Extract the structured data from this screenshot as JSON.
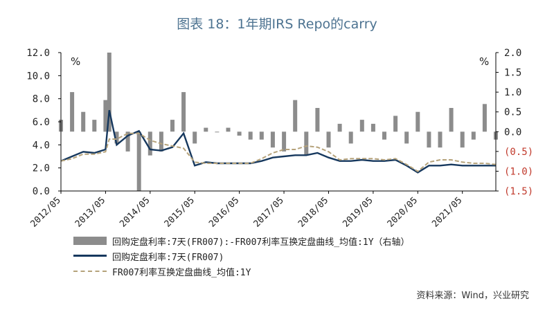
{
  "title": "图表 18：1年期IRS Repo的carry",
  "source": "资料来源：Wind，兴业研究",
  "legend": [
    {
      "label": "回购定盘利率:7天(FR007):-FR007利率互换定盘曲线_均值:1Y（右轴）",
      "style": "bar",
      "color": "#8c8c8c"
    },
    {
      "label": "回购定盘利率:7天(FR007)",
      "style": "line",
      "color": "#16385e"
    },
    {
      "label": "FR007利率互换定盘曲线_均值:1Y",
      "style": "dash",
      "color": "#b5a27a"
    }
  ],
  "chart_data": {
    "type": "line",
    "left_axis": {
      "unit": "%",
      "ylim": [
        0,
        12
      ],
      "ticks": [
        "0.0",
        "2.0",
        "4.0",
        "6.0",
        "8.0",
        "10.0",
        "12.0"
      ]
    },
    "right_axis": {
      "unit": "%",
      "ylim": [
        -1.5,
        2.0
      ],
      "ticks": [
        "(1.5)",
        "(1.0)",
        "(0.5)",
        "0.0",
        "0.5",
        "1.0",
        "1.5",
        "2.0"
      ]
    },
    "x_ticks": [
      "2012/05",
      "2013/05",
      "2014/05",
      "2015/05",
      "2016/05",
      "2017/05",
      "2018/05",
      "2019/05",
      "2020/05",
      "2021/05"
    ],
    "x_range": [
      "2012/05",
      "2022/02"
    ],
    "grid": false,
    "series": [
      {
        "name": "回购定盘利率:7天(FR007)",
        "axis": "left",
        "x": [
          "2012/05",
          "2012/08",
          "2012/11",
          "2013/02",
          "2013/05",
          "2013/06",
          "2013/08",
          "2013/11",
          "2014/02",
          "2014/05",
          "2014/08",
          "2014/11",
          "2015/02",
          "2015/05",
          "2015/08",
          "2015/11",
          "2016/02",
          "2016/05",
          "2016/08",
          "2016/11",
          "2017/02",
          "2017/05",
          "2017/08",
          "2017/11",
          "2018/02",
          "2018/05",
          "2018/08",
          "2018/11",
          "2019/02",
          "2019/05",
          "2019/08",
          "2019/11",
          "2020/02",
          "2020/05",
          "2020/08",
          "2020/11",
          "2021/02",
          "2021/05",
          "2021/08",
          "2021/11",
          "2022/02"
        ],
        "values": [
          2.6,
          3.0,
          3.4,
          3.3,
          3.6,
          7.0,
          4.0,
          4.8,
          5.2,
          3.6,
          3.5,
          3.8,
          5.0,
          2.2,
          2.5,
          2.4,
          2.4,
          2.4,
          2.4,
          2.6,
          2.9,
          3.0,
          3.1,
          3.1,
          3.3,
          2.9,
          2.6,
          2.6,
          2.7,
          2.6,
          2.6,
          2.7,
          2.2,
          1.6,
          2.2,
          2.2,
          2.3,
          2.2,
          2.2,
          2.2,
          2.2
        ]
      },
      {
        "name": "FR007利率互换定盘曲线_均值:1Y",
        "axis": "left",
        "x": [
          "2012/05",
          "2012/08",
          "2012/11",
          "2013/02",
          "2013/05",
          "2013/06",
          "2013/08",
          "2013/11",
          "2014/02",
          "2014/05",
          "2014/08",
          "2014/11",
          "2015/02",
          "2015/05",
          "2015/08",
          "2015/11",
          "2016/02",
          "2016/05",
          "2016/08",
          "2016/11",
          "2017/02",
          "2017/05",
          "2017/08",
          "2017/11",
          "2018/02",
          "2018/05",
          "2018/08",
          "2018/11",
          "2019/02",
          "2019/05",
          "2019/08",
          "2019/11",
          "2020/02",
          "2020/05",
          "2020/08",
          "2020/11",
          "2021/02",
          "2021/05",
          "2021/08",
          "2021/11",
          "2022/02"
        ],
        "values": [
          2.6,
          2.8,
          3.2,
          3.2,
          3.4,
          4.5,
          4.5,
          5.0,
          5.0,
          4.4,
          4.1,
          3.9,
          3.7,
          2.5,
          2.4,
          2.4,
          2.4,
          2.4,
          2.4,
          2.8,
          3.3,
          3.6,
          3.6,
          3.9,
          3.8,
          3.4,
          2.7,
          2.8,
          2.8,
          2.8,
          2.7,
          2.8,
          2.3,
          1.7,
          2.5,
          2.7,
          2.7,
          2.5,
          2.4,
          2.4,
          2.3
        ]
      },
      {
        "name": "回购定盘利率:7天(FR007):-FR007利率互换定盘曲线_均值:1Y",
        "type": "bar",
        "axis": "right",
        "x": [
          "2012/05",
          "2012/08",
          "2012/11",
          "2013/02",
          "2013/05",
          "2013/06",
          "2013/08",
          "2013/11",
          "2014/02",
          "2014/05",
          "2014/08",
          "2014/11",
          "2015/02",
          "2015/05",
          "2015/08",
          "2015/11",
          "2016/02",
          "2016/05",
          "2016/08",
          "2016/11",
          "2017/02",
          "2017/05",
          "2017/08",
          "2017/11",
          "2018/02",
          "2018/05",
          "2018/08",
          "2018/11",
          "2019/02",
          "2019/05",
          "2019/08",
          "2019/11",
          "2020/02",
          "2020/05",
          "2020/08",
          "2020/11",
          "2021/02",
          "2021/05",
          "2021/08",
          "2021/11",
          "2022/02"
        ],
        "values": [
          0.3,
          1.0,
          0.5,
          0.3,
          0.8,
          2.0,
          -0.3,
          -0.5,
          -1.5,
          -0.6,
          -0.5,
          0.3,
          1.0,
          -0.3,
          0.1,
          0.0,
          0.1,
          -0.1,
          -0.2,
          -0.2,
          -0.4,
          -0.5,
          0.8,
          -0.6,
          0.6,
          -0.4,
          0.2,
          -0.3,
          0.3,
          0.2,
          -0.2,
          0.4,
          -0.3,
          0.5,
          -0.4,
          -0.4,
          0.6,
          -0.4,
          -0.2,
          0.7,
          -0.2
        ]
      }
    ]
  }
}
